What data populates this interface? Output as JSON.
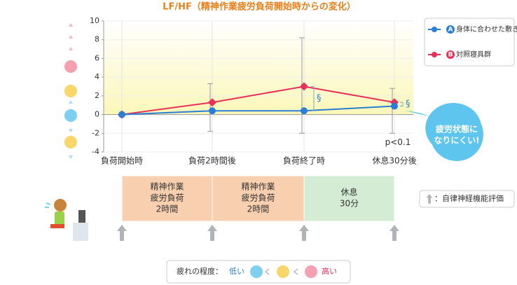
{
  "chart_data": {
    "type": "line",
    "title": "LF/HF（精神作業疲労負荷開始時からの変化）",
    "categories": [
      "負荷開始時",
      "負荷2時間後",
      "負荷終了時",
      "休息30分後"
    ],
    "series": [
      {
        "name": "身体に合わせた敷き寝具群",
        "badge": "A",
        "color": "#2a7fd4",
        "values": [
          0,
          0.4,
          0.4,
          0.9
        ]
      },
      {
        "name": "対照寝具群",
        "badge": "B",
        "color": "#e8305a",
        "values": [
          0,
          1.3,
          3.0,
          1.3
        ]
      }
    ],
    "error_low": [
      null,
      -1.8,
      -2,
      -2
    ],
    "error_high": [
      null,
      3.3,
      8.2,
      2.8
    ],
    "ylim": [
      -4,
      10
    ],
    "yticks": [
      -4,
      -2,
      0,
      2,
      4,
      6,
      8,
      10
    ],
    "annotations": [
      "§",
      "§",
      "p<0.1"
    ],
    "callout": [
      "疲労状態に",
      "なりにくい!"
    ]
  },
  "timeline": {
    "phases": [
      [
        "精神作業",
        "疲労負荷",
        "2時間"
      ],
      [
        "精神作業",
        "疲労負荷",
        "2時間"
      ],
      [
        "休息",
        "30分"
      ]
    ],
    "note": "：自律神経機能評価"
  },
  "fatigue_scale": {
    "label": "疲れの程度：",
    "low": "低い",
    "high": "高い"
  }
}
